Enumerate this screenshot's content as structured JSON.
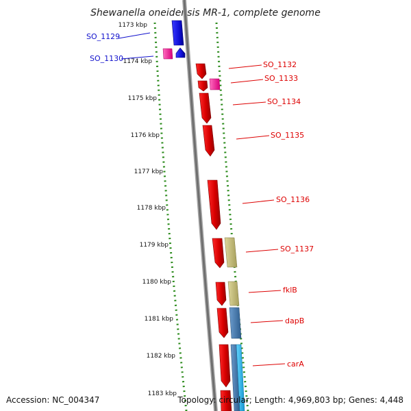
{
  "title": "Shewanella oneidensis MR-1, complete genome",
  "footer": {
    "accession": "Accession: NC_004347",
    "summary": "Topology: circular; Length: 4,969,803 bp; Genes: 4,448"
  },
  "kbp_ticks": [
    "1173 kbp",
    "1174 kbp",
    "1175 kbp",
    "1176 kbp",
    "1177 kbp",
    "1178 kbp",
    "1179 kbp",
    "1180 kbp",
    "1181 kbp",
    "1182 kbp",
    "1183 kbp"
  ],
  "genes": [
    {
      "label": "SO_1129",
      "color": "#1010cc",
      "strand": "minus"
    },
    {
      "label": "SO_1130",
      "color": "#1010cc",
      "strand": "minus"
    },
    {
      "label": "SO_1132",
      "color": "#dd0000",
      "strand": "plus"
    },
    {
      "label": "SO_1133",
      "color": "#dd0000",
      "strand": "plus"
    },
    {
      "label": "SO_1134",
      "color": "#dd0000",
      "strand": "plus"
    },
    {
      "label": "SO_1135",
      "color": "#dd0000",
      "strand": "plus"
    },
    {
      "label": "SO_1136",
      "color": "#dd0000",
      "strand": "plus"
    },
    {
      "label": "SO_1137",
      "color": "#dd0000",
      "strand": "plus"
    },
    {
      "label": "fklB",
      "color": "#dd0000",
      "strand": "plus"
    },
    {
      "label": "dapB",
      "color": "#dd0000",
      "strand": "plus"
    },
    {
      "label": "carA",
      "color": "#dd0000",
      "strand": "plus"
    }
  ],
  "colors": {
    "backbone": "#7a7a7a",
    "dotted_ring": "#2a8a1a",
    "cds_forward": "#ee0000",
    "cds_reverse": "#1f1fe6",
    "rna": "#ff3fa0",
    "feature_khaki": "#c9c27f",
    "feature_steel": "#4a7fb5",
    "feature_cyan": "#29b6ee"
  }
}
